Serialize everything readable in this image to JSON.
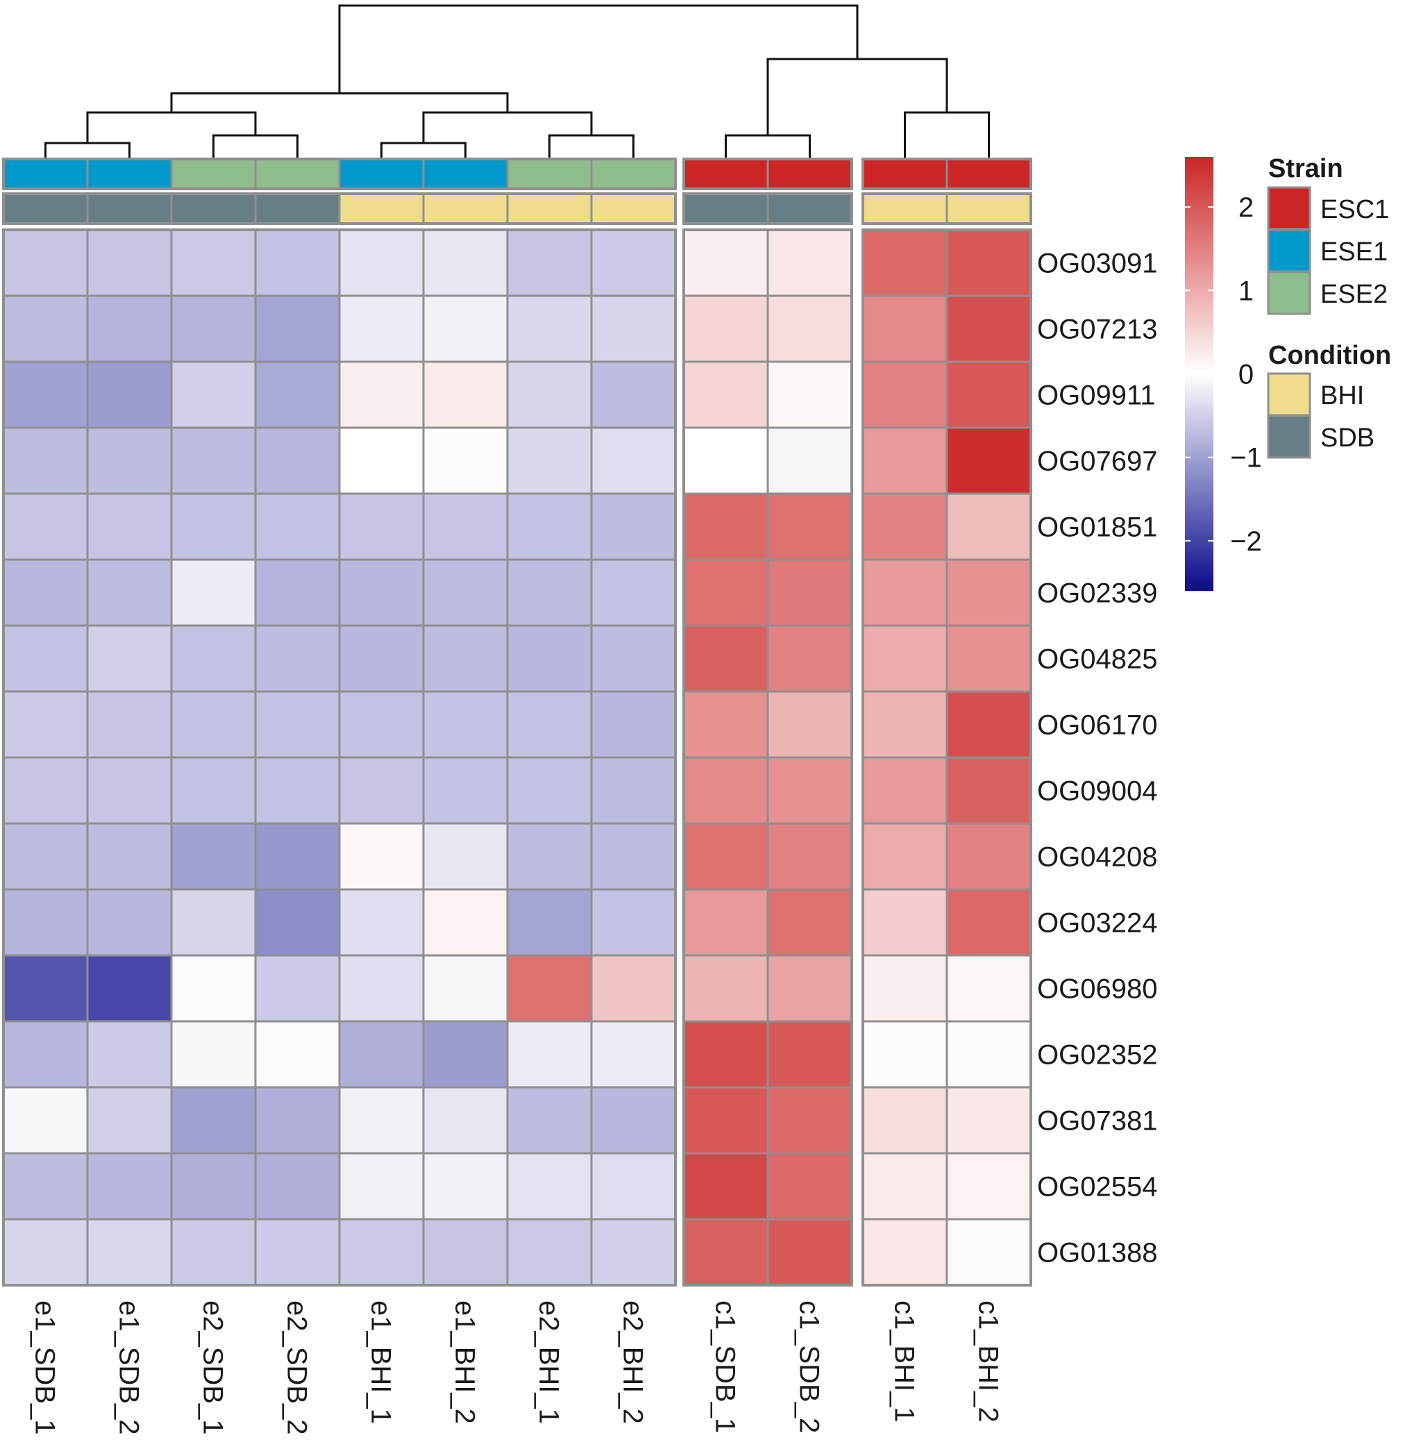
{
  "chart_data": {
    "type": "heatmap",
    "title": "",
    "columns": [
      "e1_SDB_1",
      "e1_SDB_2",
      "e2_SDB_1",
      "e2_SDB_2",
      "e1_BHI_1",
      "e1_BHI_2",
      "e2_BHI_1",
      "e2_BHI_2",
      "c1_SDB_1",
      "c1_SDB_2",
      "c1_BHI_1",
      "c1_BHI_2"
    ],
    "column_groups": [
      {
        "name": "group-1",
        "columns": [
          0,
          1,
          2,
          3,
          4,
          5,
          6,
          7
        ]
      },
      {
        "name": "group-2",
        "columns": [
          8,
          9
        ]
      },
      {
        "name": "group-3",
        "columns": [
          10,
          11
        ]
      }
    ],
    "rows": [
      "OG03091",
      "OG07213",
      "OG09911",
      "OG07697",
      "OG01851",
      "OG02339",
      "OG04825",
      "OG06170",
      "OG09004",
      "OG04208",
      "OG03224",
      "OG06980",
      "OG02352",
      "OG07381",
      "OG02554",
      "OG01388"
    ],
    "values": [
      [
        -0.6,
        -0.6,
        -0.55,
        -0.65,
        -0.3,
        -0.25,
        -0.6,
        -0.55,
        0.2,
        0.3,
        1.8,
        2.0
      ],
      [
        -0.7,
        -0.8,
        -0.8,
        -0.95,
        -0.2,
        -0.15,
        -0.4,
        -0.45,
        0.5,
        0.4,
        1.4,
        2.1
      ],
      [
        -1.0,
        -1.05,
        -0.5,
        -0.9,
        0.2,
        0.25,
        -0.45,
        -0.7,
        0.5,
        0.1,
        1.5,
        2.0
      ],
      [
        -0.7,
        -0.7,
        -0.7,
        -0.75,
        0.0,
        0.05,
        -0.4,
        -0.35,
        0.0,
        -0.1,
        1.2,
        2.5
      ],
      [
        -0.6,
        -0.6,
        -0.65,
        -0.65,
        -0.6,
        -0.6,
        -0.65,
        -0.7,
        1.8,
        1.7,
        1.5,
        0.8
      ],
      [
        -0.75,
        -0.7,
        -0.2,
        -0.8,
        -0.75,
        -0.7,
        -0.7,
        -0.65,
        1.7,
        1.6,
        1.2,
        1.3
      ],
      [
        -0.65,
        -0.5,
        -0.65,
        -0.7,
        -0.75,
        -0.7,
        -0.75,
        -0.7,
        1.9,
        1.5,
        1.0,
        1.3
      ],
      [
        -0.55,
        -0.6,
        -0.65,
        -0.65,
        -0.65,
        -0.65,
        -0.65,
        -0.75,
        1.3,
        0.9,
        0.9,
        2.1
      ],
      [
        -0.6,
        -0.6,
        -0.65,
        -0.65,
        -0.6,
        -0.65,
        -0.65,
        -0.7,
        1.4,
        1.3,
        1.2,
        1.9
      ],
      [
        -0.7,
        -0.7,
        -1.0,
        -1.1,
        0.1,
        -0.25,
        -0.7,
        -0.7,
        1.7,
        1.5,
        1.0,
        1.5
      ],
      [
        -0.8,
        -0.75,
        -0.45,
        -1.2,
        -0.35,
        0.15,
        -0.95,
        -0.65,
        1.2,
        1.7,
        0.6,
        1.8
      ],
      [
        -1.8,
        -1.95,
        -0.05,
        -0.55,
        -0.35,
        -0.1,
        1.7,
        0.7,
        0.9,
        1.1,
        0.2,
        0.1
      ],
      [
        -0.75,
        -0.55,
        -0.1,
        -0.05,
        -0.85,
        -1.05,
        -0.2,
        -0.2,
        2.1,
        2.0,
        0.05,
        0.05
      ],
      [
        -0.1,
        -0.5,
        -1.0,
        -0.85,
        -0.15,
        -0.25,
        -0.7,
        -0.75,
        2.0,
        1.8,
        0.4,
        0.3
      ],
      [
        -0.7,
        -0.75,
        -0.85,
        -0.85,
        -0.15,
        -0.15,
        -0.3,
        -0.35,
        2.2,
        1.8,
        0.25,
        0.15
      ],
      [
        -0.45,
        -0.4,
        -0.55,
        -0.55,
        -0.55,
        -0.6,
        -0.55,
        -0.5,
        1.9,
        2.0,
        0.3,
        0.05
      ]
    ],
    "color_scale": {
      "domain": [
        -2.6,
        0,
        2.6
      ],
      "colors": [
        "#0a0a8c",
        "#ffffff",
        "#cc2525"
      ],
      "ticks": [
        2,
        1,
        0,
        -1,
        -2
      ],
      "tick_labels": [
        "2",
        "1",
        "0",
        "−1",
        "−2"
      ]
    },
    "annotations": [
      {
        "name": "Strain",
        "values": [
          "ESE1",
          "ESE1",
          "ESE2",
          "ESE2",
          "ESE1",
          "ESE1",
          "ESE2",
          "ESE2",
          "ESC1",
          "ESC1",
          "ESC1",
          "ESC1"
        ],
        "legend": [
          {
            "label": "ESC1",
            "color": "#cc2525"
          },
          {
            "label": "ESE1",
            "color": "#0099cc"
          },
          {
            "label": "ESE2",
            "color": "#8fbe8c"
          }
        ]
      },
      {
        "name": "Condition",
        "values": [
          "SDB",
          "SDB",
          "SDB",
          "SDB",
          "BHI",
          "BHI",
          "BHI",
          "BHI",
          "SDB",
          "SDB",
          "BHI",
          "BHI"
        ],
        "legend": [
          {
            "label": "BHI",
            "color": "#efdc8c"
          },
          {
            "label": "SDB",
            "color": "#667f87"
          }
        ]
      }
    ],
    "column_dendrogram": {
      "merges": [
        [
          -1,
          -2,
          0.2
        ],
        [
          -3,
          -4,
          0.3
        ],
        [
          -5,
          -6,
          0.2
        ],
        [
          -7,
          -8,
          0.3
        ],
        [
          1,
          2,
          0.6
        ],
        [
          3,
          4,
          0.6
        ],
        [
          5,
          6,
          0.85
        ],
        [
          -9,
          -10,
          0.3
        ],
        [
          -11,
          -12,
          0.6
        ],
        [
          8,
          9,
          1.3
        ],
        [
          7,
          10,
          2.0
        ]
      ]
    }
  }
}
